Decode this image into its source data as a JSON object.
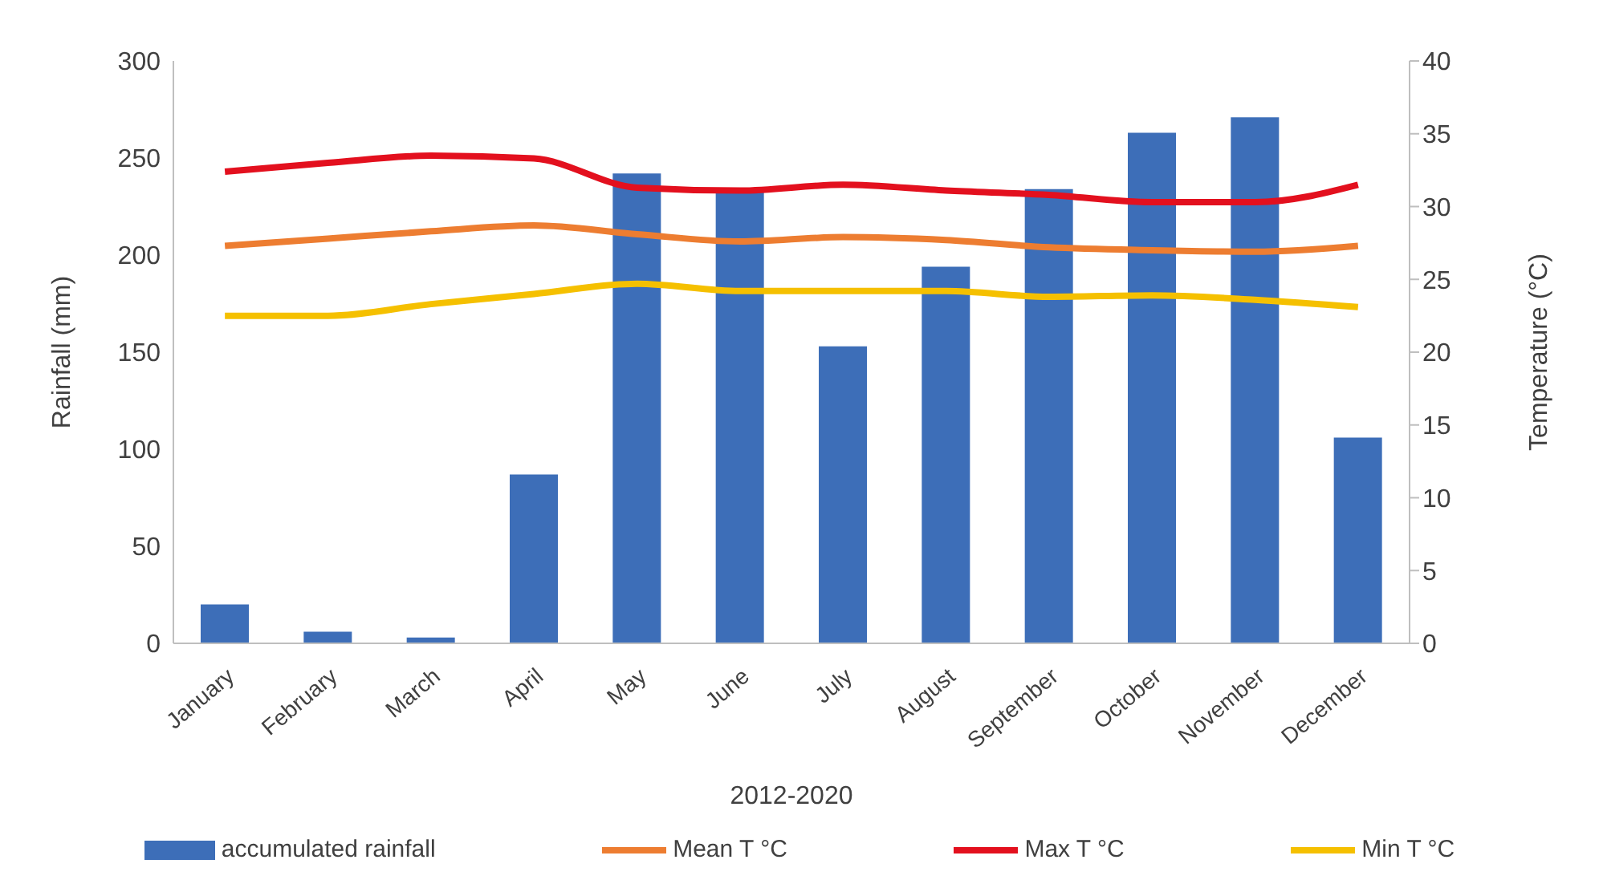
{
  "chart_data": {
    "type": "bar",
    "xlabel": "2012-2020",
    "ylabel": "Rainfall (mm)",
    "y2label": "Temperature (°C)",
    "categories": [
      "January",
      "February",
      "March",
      "April",
      "May",
      "June",
      "July",
      "August",
      "September",
      "October",
      "November",
      "December"
    ],
    "series": [
      {
        "name": "accumulated rainfall",
        "color": "#3d6eb8",
        "values": [
          20,
          6,
          3,
          87,
          242,
          234,
          153,
          194,
          234,
          263,
          271,
          106
        ]
      },
      {
        "name": "Mean T °C",
        "type": "line",
        "axis": "y2",
        "color": "#ed7d31",
        "values": [
          27.3,
          27.8,
          28.3,
          28.7,
          28.1,
          27.6,
          27.9,
          27.7,
          27.2,
          27.0,
          26.9,
          27.3
        ]
      },
      {
        "name": "Max T °C",
        "type": "line",
        "axis": "y2",
        "color": "#e3101e",
        "values": [
          32.4,
          33.0,
          33.5,
          33.3,
          31.3,
          31.1,
          31.5,
          31.1,
          30.8,
          30.3,
          30.3,
          31.5
        ]
      },
      {
        "name": "Min T °C",
        "type": "line",
        "axis": "y2",
        "color": "#f5c000",
        "values": [
          22.5,
          22.5,
          23.3,
          24.0,
          24.7,
          24.2,
          24.2,
          24.2,
          23.8,
          23.9,
          23.6,
          23.1
        ]
      }
    ],
    "ylim": [
      0,
      300
    ],
    "yticks": [
      0,
      50,
      100,
      150,
      200,
      250,
      300
    ],
    "y2lim": [
      0,
      40
    ],
    "y2ticks": [
      0,
      5,
      10,
      15,
      20,
      25,
      30,
      35,
      40
    ],
    "grid": false,
    "legend": "bottom"
  }
}
